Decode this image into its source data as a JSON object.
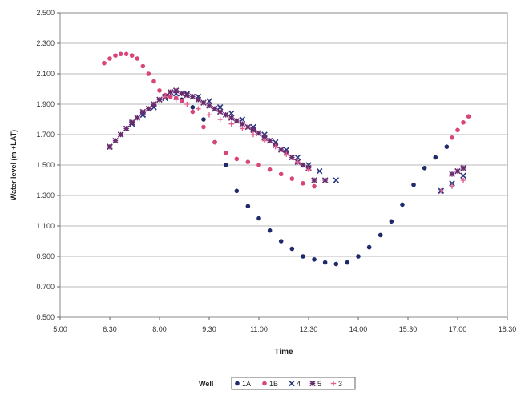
{
  "chart_data": {
    "type": "scatter",
    "title": "",
    "xlabel": "Time",
    "ylabel": "Water level (m +LAT)",
    "x_ticks": [
      "5:00",
      "6:30",
      "8:00",
      "9:30",
      "11:00",
      "12:30",
      "14:00",
      "15:30",
      "17:00",
      "18:30"
    ],
    "x_unit": "hours of day",
    "xlim": [
      5.0,
      18.5
    ],
    "y_ticks": [
      "0.500",
      "0.700",
      "0.900",
      "1.100",
      "1.300",
      "1.500",
      "1.700",
      "1.900",
      "2.100",
      "2.300",
      "2.500"
    ],
    "ylim": [
      0.5,
      2.5
    ],
    "grid": "horizontal",
    "legend": {
      "position": "bottom",
      "title": "Well"
    },
    "series": [
      {
        "name": "1A",
        "marker": "circle",
        "color": "#1f2a6b",
        "x": [
          8.33,
          8.67,
          9.0,
          9.33,
          9.67,
          10.0,
          10.33,
          10.67,
          11.0,
          11.33,
          11.67,
          12.0,
          12.33,
          12.67,
          13.0,
          13.33,
          13.67,
          14.0,
          14.33,
          14.67,
          15.0,
          15.33,
          15.67,
          16.0,
          16.33,
          16.67
        ],
        "y": [
          1.95,
          1.93,
          1.88,
          1.8,
          1.65,
          1.5,
          1.33,
          1.23,
          1.15,
          1.07,
          1.0,
          0.95,
          0.9,
          0.88,
          0.86,
          0.85,
          0.86,
          0.9,
          0.96,
          1.04,
          1.13,
          1.24,
          1.37,
          1.48,
          1.55,
          1.62
        ]
      },
      {
        "name": "1B",
        "marker": "circle",
        "color": "#d8457a",
        "x": [
          6.33,
          6.5,
          6.67,
          6.83,
          7.0,
          7.17,
          7.33,
          7.5,
          7.67,
          7.83,
          8.0,
          8.17,
          8.33,
          8.5,
          8.67,
          9.0,
          9.33,
          9.67,
          10.0,
          10.33,
          10.67,
          11.0,
          11.33,
          11.67,
          12.0,
          12.33,
          12.67,
          16.83,
          17.0,
          17.17,
          17.33
        ],
        "y": [
          2.17,
          2.2,
          2.22,
          2.23,
          2.23,
          2.22,
          2.2,
          2.15,
          2.1,
          2.05,
          1.99,
          1.96,
          1.95,
          1.94,
          1.92,
          1.85,
          1.75,
          1.65,
          1.58,
          1.54,
          1.52,
          1.5,
          1.47,
          1.44,
          1.41,
          1.38,
          1.36,
          1.68,
          1.73,
          1.78,
          1.82
        ]
      },
      {
        "name": "4",
        "marker": "x",
        "color": "#2b3580",
        "x": [
          6.5,
          6.83,
          7.17,
          7.5,
          7.83,
          8.17,
          8.5,
          8.83,
          9.17,
          9.5,
          9.83,
          10.17,
          10.5,
          10.83,
          11.17,
          11.5,
          11.83,
          12.17,
          12.5,
          12.83,
          13.33,
          16.5,
          16.83,
          17.17
        ],
        "y": [
          1.62,
          1.7,
          1.77,
          1.83,
          1.88,
          1.94,
          1.97,
          1.97,
          1.95,
          1.92,
          1.88,
          1.84,
          1.8,
          1.75,
          1.7,
          1.65,
          1.6,
          1.55,
          1.5,
          1.46,
          1.4,
          1.33,
          1.38,
          1.43
        ]
      },
      {
        "name": "5",
        "marker": "star",
        "color": "#6a2a6e",
        "x": [
          6.5,
          6.67,
          6.83,
          7.0,
          7.17,
          7.33,
          7.5,
          7.67,
          7.83,
          8.0,
          8.17,
          8.33,
          8.5,
          8.67,
          8.83,
          9.0,
          9.17,
          9.33,
          9.5,
          9.67,
          9.83,
          10.0,
          10.17,
          10.33,
          10.5,
          10.67,
          10.83,
          11.0,
          11.17,
          11.33,
          11.5,
          11.67,
          11.83,
          12.0,
          12.17,
          12.33,
          12.5,
          12.67,
          13.0,
          16.83,
          17.0,
          17.17
        ],
        "y": [
          1.62,
          1.66,
          1.7,
          1.74,
          1.78,
          1.81,
          1.85,
          1.87,
          1.9,
          1.93,
          1.95,
          1.98,
          1.99,
          1.97,
          1.96,
          1.95,
          1.93,
          1.91,
          1.89,
          1.87,
          1.85,
          1.83,
          1.81,
          1.79,
          1.77,
          1.75,
          1.73,
          1.71,
          1.68,
          1.66,
          1.63,
          1.6,
          1.58,
          1.55,
          1.52,
          1.5,
          1.48,
          1.4,
          1.4,
          1.44,
          1.46,
          1.48
        ]
      },
      {
        "name": "3",
        "marker": "plus",
        "color": "#e06090",
        "x": [
          8.17,
          8.5,
          8.83,
          9.17,
          9.5,
          9.83,
          10.17,
          10.5,
          10.83,
          11.17,
          11.5,
          11.83,
          12.17,
          12.5,
          16.5,
          16.83,
          17.17
        ],
        "y": [
          1.95,
          1.93,
          1.9,
          1.87,
          1.83,
          1.8,
          1.77,
          1.74,
          1.7,
          1.66,
          1.62,
          1.57,
          1.52,
          1.47,
          1.33,
          1.36,
          1.4
        ]
      }
    ]
  }
}
